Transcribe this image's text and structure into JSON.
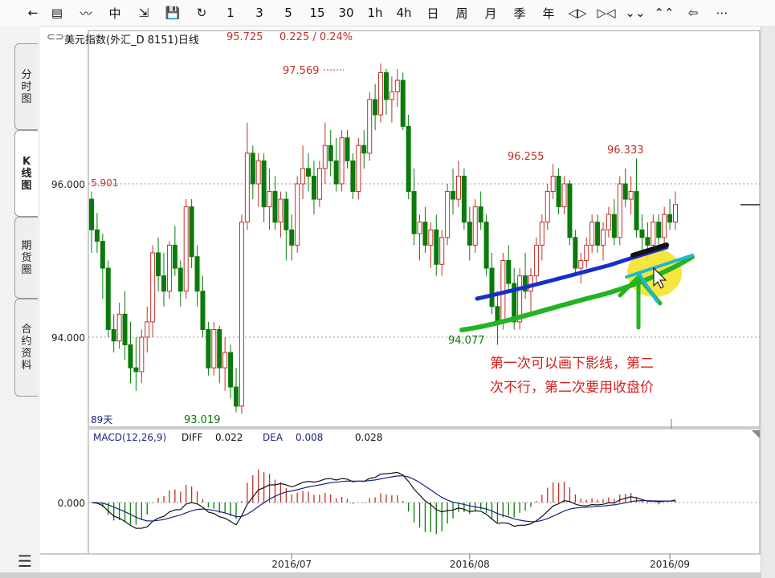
{
  "toolbar": {
    "items": [
      {
        "label": "←",
        "name": "back-arrow-icon"
      },
      {
        "label": "▤",
        "name": "list-view-icon"
      },
      {
        "label": "〰",
        "name": "line-chart-icon"
      },
      {
        "label": "中",
        "name": "candlestick-icon"
      },
      {
        "label": "⇲",
        "name": "draw-tool-icon"
      },
      {
        "label": "💾",
        "name": "save-icon"
      },
      {
        "label": "↻",
        "name": "refresh-icon"
      },
      {
        "label": "1",
        "name": "period-1min"
      },
      {
        "label": "3",
        "name": "period-3min"
      },
      {
        "label": "5",
        "name": "period-5min"
      },
      {
        "label": "15",
        "name": "period-15min"
      },
      {
        "label": "30",
        "name": "period-30min"
      },
      {
        "label": "1h",
        "name": "period-1h"
      },
      {
        "label": "4h",
        "name": "period-4h"
      },
      {
        "label": "日",
        "name": "period-day"
      },
      {
        "label": "周",
        "name": "period-week"
      },
      {
        "label": "月",
        "name": "period-month"
      },
      {
        "label": "季",
        "name": "period-quarter"
      },
      {
        "label": "年",
        "name": "period-year"
      },
      {
        "label": "◁▷",
        "name": "zoom-out-icon"
      },
      {
        "label": "▷◁",
        "name": "zoom-in-icon"
      },
      {
        "label": "⌄⌄",
        "name": "scroll-down-icon"
      },
      {
        "label": "⌃⌃",
        "name": "scroll-up-icon"
      },
      {
        "label": "⇦",
        "name": "move-left-icon"
      },
      {
        "label": "⋯",
        "name": "more-icon"
      }
    ]
  },
  "tabs": [
    {
      "label": "分时图",
      "name": "tab-timeshare"
    },
    {
      "label": "K线图",
      "name": "tab-kline"
    },
    {
      "label": "期货圈",
      "name": "tab-futures-circle"
    },
    {
      "label": "合约资料",
      "name": "tab-contract-info"
    }
  ],
  "header": {
    "title": "美元指数(外汇_D 8151)日线",
    "price": "95.725",
    "change": "0.225 / 0.24%",
    "icon": "chain-link-icon"
  },
  "chart_data": {
    "type": "candlestick",
    "title": "美元指数(外汇_D 8151)日线",
    "y_ticks": [
      "96.000",
      "94.000"
    ],
    "x_ticks": [
      "2016/07",
      "2016/08",
      "2016/09"
    ],
    "annotations": {
      "high_1": "97.569",
      "high_2": "96.255",
      "high_3": "96.333",
      "low_1": "93.019",
      "low_2": "94.077",
      "left_value": "5.901",
      "days": "89天"
    },
    "ohlc": [
      [
        95.8,
        95.9,
        95.1,
        95.4
      ],
      [
        95.4,
        95.62,
        95.1,
        95.25
      ],
      [
        95.25,
        95.35,
        94.5,
        94.9
      ],
      [
        94.9,
        95.0,
        94.0,
        94.1
      ],
      [
        94.1,
        94.3,
        93.8,
        93.95
      ],
      [
        93.95,
        94.45,
        93.85,
        94.3
      ],
      [
        94.3,
        94.6,
        93.7,
        93.9
      ],
      [
        93.9,
        94.2,
        93.4,
        93.6
      ],
      [
        93.6,
        94.0,
        93.3,
        93.55
      ],
      [
        93.55,
        94.1,
        93.4,
        94.0
      ],
      [
        94.0,
        94.4,
        93.8,
        94.2
      ],
      [
        94.2,
        95.2,
        94.0,
        95.1
      ],
      [
        95.1,
        95.3,
        94.6,
        94.8
      ],
      [
        94.8,
        95.1,
        94.4,
        94.6
      ],
      [
        94.6,
        95.25,
        94.5,
        95.2
      ],
      [
        95.2,
        95.45,
        94.8,
        94.9
      ],
      [
        94.9,
        95.0,
        94.4,
        94.6
      ],
      [
        94.6,
        95.8,
        94.5,
        95.7
      ],
      [
        95.7,
        95.8,
        94.9,
        95.05
      ],
      [
        95.05,
        95.2,
        94.4,
        94.6
      ],
      [
        94.6,
        94.8,
        94.0,
        94.1
      ],
      [
        94.1,
        94.2,
        93.5,
        93.6
      ],
      [
        93.6,
        94.2,
        93.5,
        94.1
      ],
      [
        94.1,
        94.15,
        93.4,
        93.6
      ],
      [
        93.6,
        94.0,
        93.3,
        93.8
      ],
      [
        93.8,
        93.9,
        93.2,
        93.35
      ],
      [
        93.35,
        93.6,
        93.02,
        93.1
      ],
      [
        93.1,
        95.6,
        93.0,
        95.5
      ],
      [
        95.5,
        96.8,
        95.4,
        96.4
      ],
      [
        96.4,
        96.5,
        95.8,
        96.0
      ],
      [
        96.0,
        96.4,
        95.7,
        96.3
      ],
      [
        96.3,
        96.4,
        95.5,
        95.7
      ],
      [
        95.7,
        96.2,
        95.4,
        95.9
      ],
      [
        95.9,
        96.1,
        95.4,
        95.5
      ],
      [
        95.5,
        95.9,
        95.3,
        95.8
      ],
      [
        95.8,
        95.9,
        95.0,
        95.4
      ],
      [
        95.4,
        95.6,
        95.0,
        95.2
      ],
      [
        95.2,
        96.1,
        95.1,
        96.0
      ],
      [
        96.0,
        96.5,
        95.8,
        96.2
      ],
      [
        96.2,
        96.4,
        95.9,
        96.1
      ],
      [
        96.1,
        96.3,
        95.6,
        95.8
      ],
      [
        95.8,
        96.3,
        95.7,
        96.2
      ],
      [
        96.2,
        96.8,
        96.0,
        96.5
      ],
      [
        96.5,
        96.7,
        96.1,
        96.3
      ],
      [
        96.3,
        96.6,
        95.9,
        96.0
      ],
      [
        96.0,
        96.7,
        95.9,
        96.6
      ],
      [
        96.6,
        96.7,
        96.2,
        96.3
      ],
      [
        96.3,
        96.4,
        95.8,
        95.9
      ],
      [
        95.9,
        96.6,
        95.8,
        96.5
      ],
      [
        96.5,
        96.7,
        96.2,
        96.4
      ],
      [
        96.4,
        97.2,
        96.3,
        97.1
      ],
      [
        97.1,
        97.3,
        96.7,
        96.9
      ],
      [
        96.9,
        97.57,
        96.8,
        97.45
      ],
      [
        97.45,
        97.5,
        96.9,
        97.1
      ],
      [
        97.1,
        97.4,
        96.8,
        97.2
      ],
      [
        97.2,
        97.5,
        97.0,
        97.35
      ],
      [
        97.35,
        97.45,
        96.7,
        96.75
      ],
      [
        96.75,
        96.9,
        95.8,
        95.9
      ],
      [
        95.9,
        96.2,
        95.2,
        95.35
      ],
      [
        95.35,
        95.6,
        95.0,
        95.5
      ],
      [
        95.5,
        95.7,
        95.1,
        95.2
      ],
      [
        95.2,
        95.5,
        94.9,
        95.4
      ],
      [
        95.4,
        95.6,
        94.8,
        94.95
      ],
      [
        94.95,
        95.4,
        94.8,
        95.3
      ],
      [
        95.3,
        96.0,
        95.2,
        95.9
      ],
      [
        95.9,
        96.2,
        95.6,
        95.8
      ],
      [
        95.8,
        96.3,
        95.7,
        96.1
      ],
      [
        96.1,
        96.2,
        95.4,
        95.5
      ],
      [
        95.5,
        95.7,
        95.0,
        95.2
      ],
      [
        95.2,
        95.8,
        95.1,
        95.7
      ],
      [
        95.7,
        95.9,
        95.4,
        95.5
      ],
      [
        95.5,
        95.6,
        94.8,
        94.9
      ],
      [
        94.9,
        95.1,
        94.3,
        94.4
      ],
      [
        94.4,
        94.6,
        93.9,
        94.2
      ],
      [
        94.2,
        95.1,
        94.1,
        95.0
      ],
      [
        95.0,
        95.2,
        94.6,
        94.7
      ],
      [
        94.7,
        94.9,
        94.1,
        94.2
      ],
      [
        94.2,
        94.9,
        94.1,
        94.8
      ],
      [
        94.8,
        95.1,
        94.5,
        94.6
      ],
      [
        94.6,
        94.9,
        94.3,
        94.8
      ],
      [
        94.8,
        95.3,
        94.7,
        95.2
      ],
      [
        95.2,
        95.6,
        95.0,
        95.5
      ],
      [
        95.5,
        96.0,
        95.4,
        95.9
      ],
      [
        95.9,
        96.26,
        95.8,
        96.1
      ],
      [
        96.1,
        96.2,
        95.6,
        95.7
      ],
      [
        95.7,
        96.1,
        95.6,
        96.0
      ],
      [
        96.0,
        96.05,
        95.2,
        95.3
      ],
      [
        95.3,
        95.4,
        94.8,
        94.9
      ],
      [
        94.9,
        95.1,
        94.7,
        95.0
      ],
      [
        95.0,
        95.3,
        94.9,
        95.2
      ],
      [
        95.2,
        95.6,
        95.1,
        95.5
      ],
      [
        95.5,
        95.6,
        95.1,
        95.2
      ],
      [
        95.2,
        95.5,
        95.0,
        95.4
      ],
      [
        95.4,
        95.7,
        95.3,
        95.6
      ],
      [
        95.6,
        95.8,
        95.2,
        95.3
      ],
      [
        95.3,
        96.1,
        95.2,
        96.0
      ],
      [
        96.0,
        96.2,
        95.7,
        95.8
      ],
      [
        95.8,
        96.1,
        95.6,
        95.9
      ],
      [
        95.9,
        96.33,
        95.3,
        95.4
      ],
      [
        95.4,
        95.6,
        95.1,
        95.3
      ],
      [
        95.3,
        95.5,
        95.0,
        95.2
      ],
      [
        95.2,
        95.6,
        95.1,
        95.5
      ],
      [
        95.5,
        95.6,
        95.2,
        95.3
      ],
      [
        95.3,
        95.7,
        95.2,
        95.6
      ],
      [
        95.6,
        95.8,
        95.4,
        95.5
      ],
      [
        95.5,
        95.9,
        95.4,
        95.73
      ]
    ],
    "dates_ticks_at": [
      36,
      68,
      104
    ],
    "macd": {
      "label": "MACD(12,26,9)",
      "diff_label": "DIFF",
      "diff": "0.022",
      "dea_label": "DEA",
      "dea": "0.008",
      "macd_value": "0.028",
      "y_tick": "0.000"
    }
  },
  "annotation_text": {
    "line1": "第一次可以画下影线，第二",
    "line2": "次不行，第二次要用收盘价"
  },
  "colors": {
    "up": "#c0302a",
    "down": "#0a7a0a",
    "blue_line": "#1530c8",
    "green_line": "#22b422",
    "cyan_line": "#1fb6d6",
    "highlight": "#f3e22a",
    "text_red": "#d81e1e",
    "navy": "#1a237e"
  }
}
